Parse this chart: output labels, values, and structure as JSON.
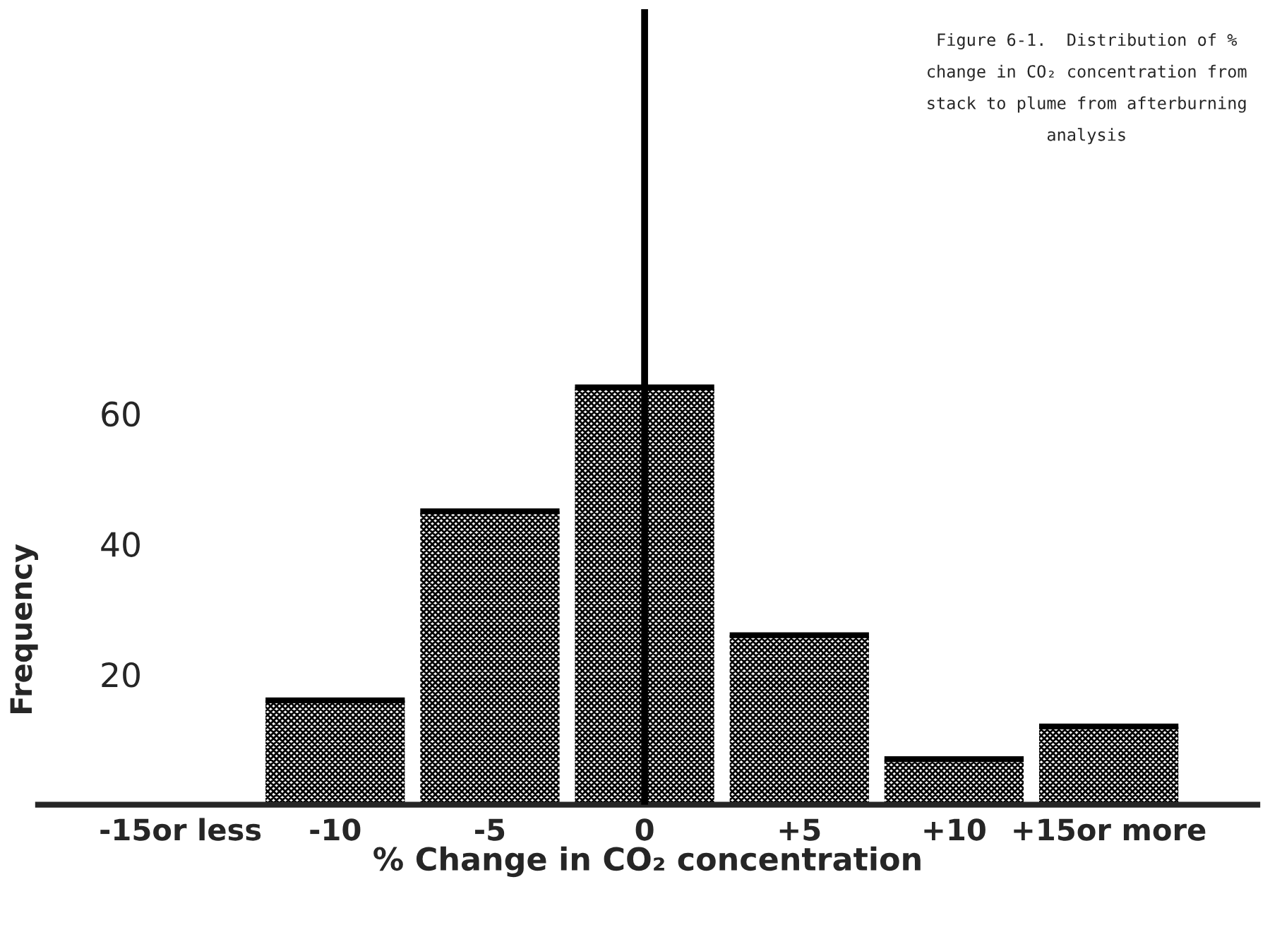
{
  "chart_data": {
    "type": "bar",
    "title": "Figure 6-1.  Distribution of % change in CO₂ concentration from stack to plume from afterburning analysis",
    "xlabel": "% Change in CO₂ concentration",
    "ylabel": "Frequency",
    "x": [
      -15,
      -10,
      -5,
      0,
      5,
      10,
      15
    ],
    "values": [
      0,
      16,
      45,
      64,
      26,
      7,
      12
    ],
    "color": "#000000",
    "xlim": [
      -19.6,
      19.8
    ],
    "xticks": [
      {
        "value": -15,
        "label": "-15or less"
      },
      -10,
      -5,
      0,
      {
        "value": 5,
        "label": "+5"
      },
      {
        "value": 10,
        "label": "+10"
      },
      {
        "value": 15,
        "label": "+15or more"
      }
    ],
    "ylim": [
      0,
      122
    ],
    "yticks": [
      20,
      40,
      60
    ],
    "ref_lines": [
      {
        "axis": "x",
        "value": 0,
        "color": "#000000"
      }
    ],
    "grid": false,
    "legend": false
  }
}
